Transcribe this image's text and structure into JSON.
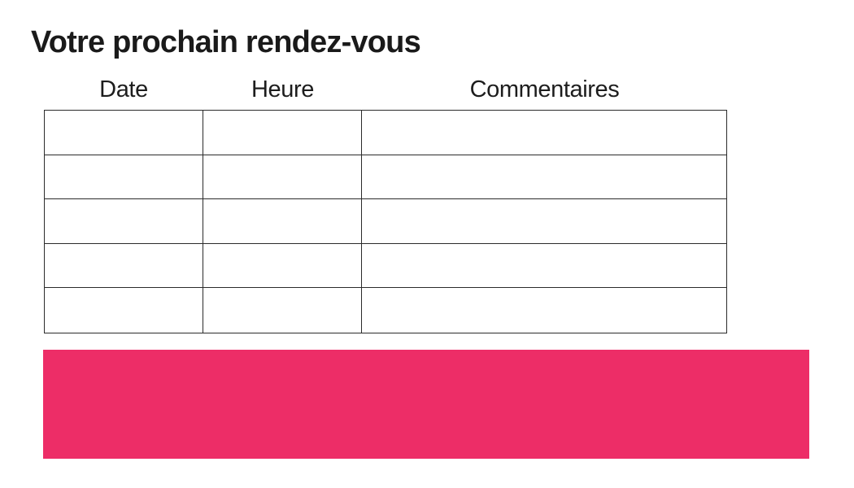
{
  "page": {
    "title": "Votre prochain rendez-vous"
  },
  "table": {
    "headers": [
      "Date",
      "Heure",
      "Commentaires"
    ],
    "rows": [
      [
        "",
        "",
        ""
      ],
      [
        "",
        "",
        ""
      ],
      [
        "",
        "",
        ""
      ],
      [
        "",
        "",
        ""
      ],
      [
        "",
        "",
        ""
      ]
    ]
  },
  "colors": {
    "accent_pink": "#ED2D67",
    "table_border": "#2b2b2b",
    "text": "#1a1a1a"
  }
}
